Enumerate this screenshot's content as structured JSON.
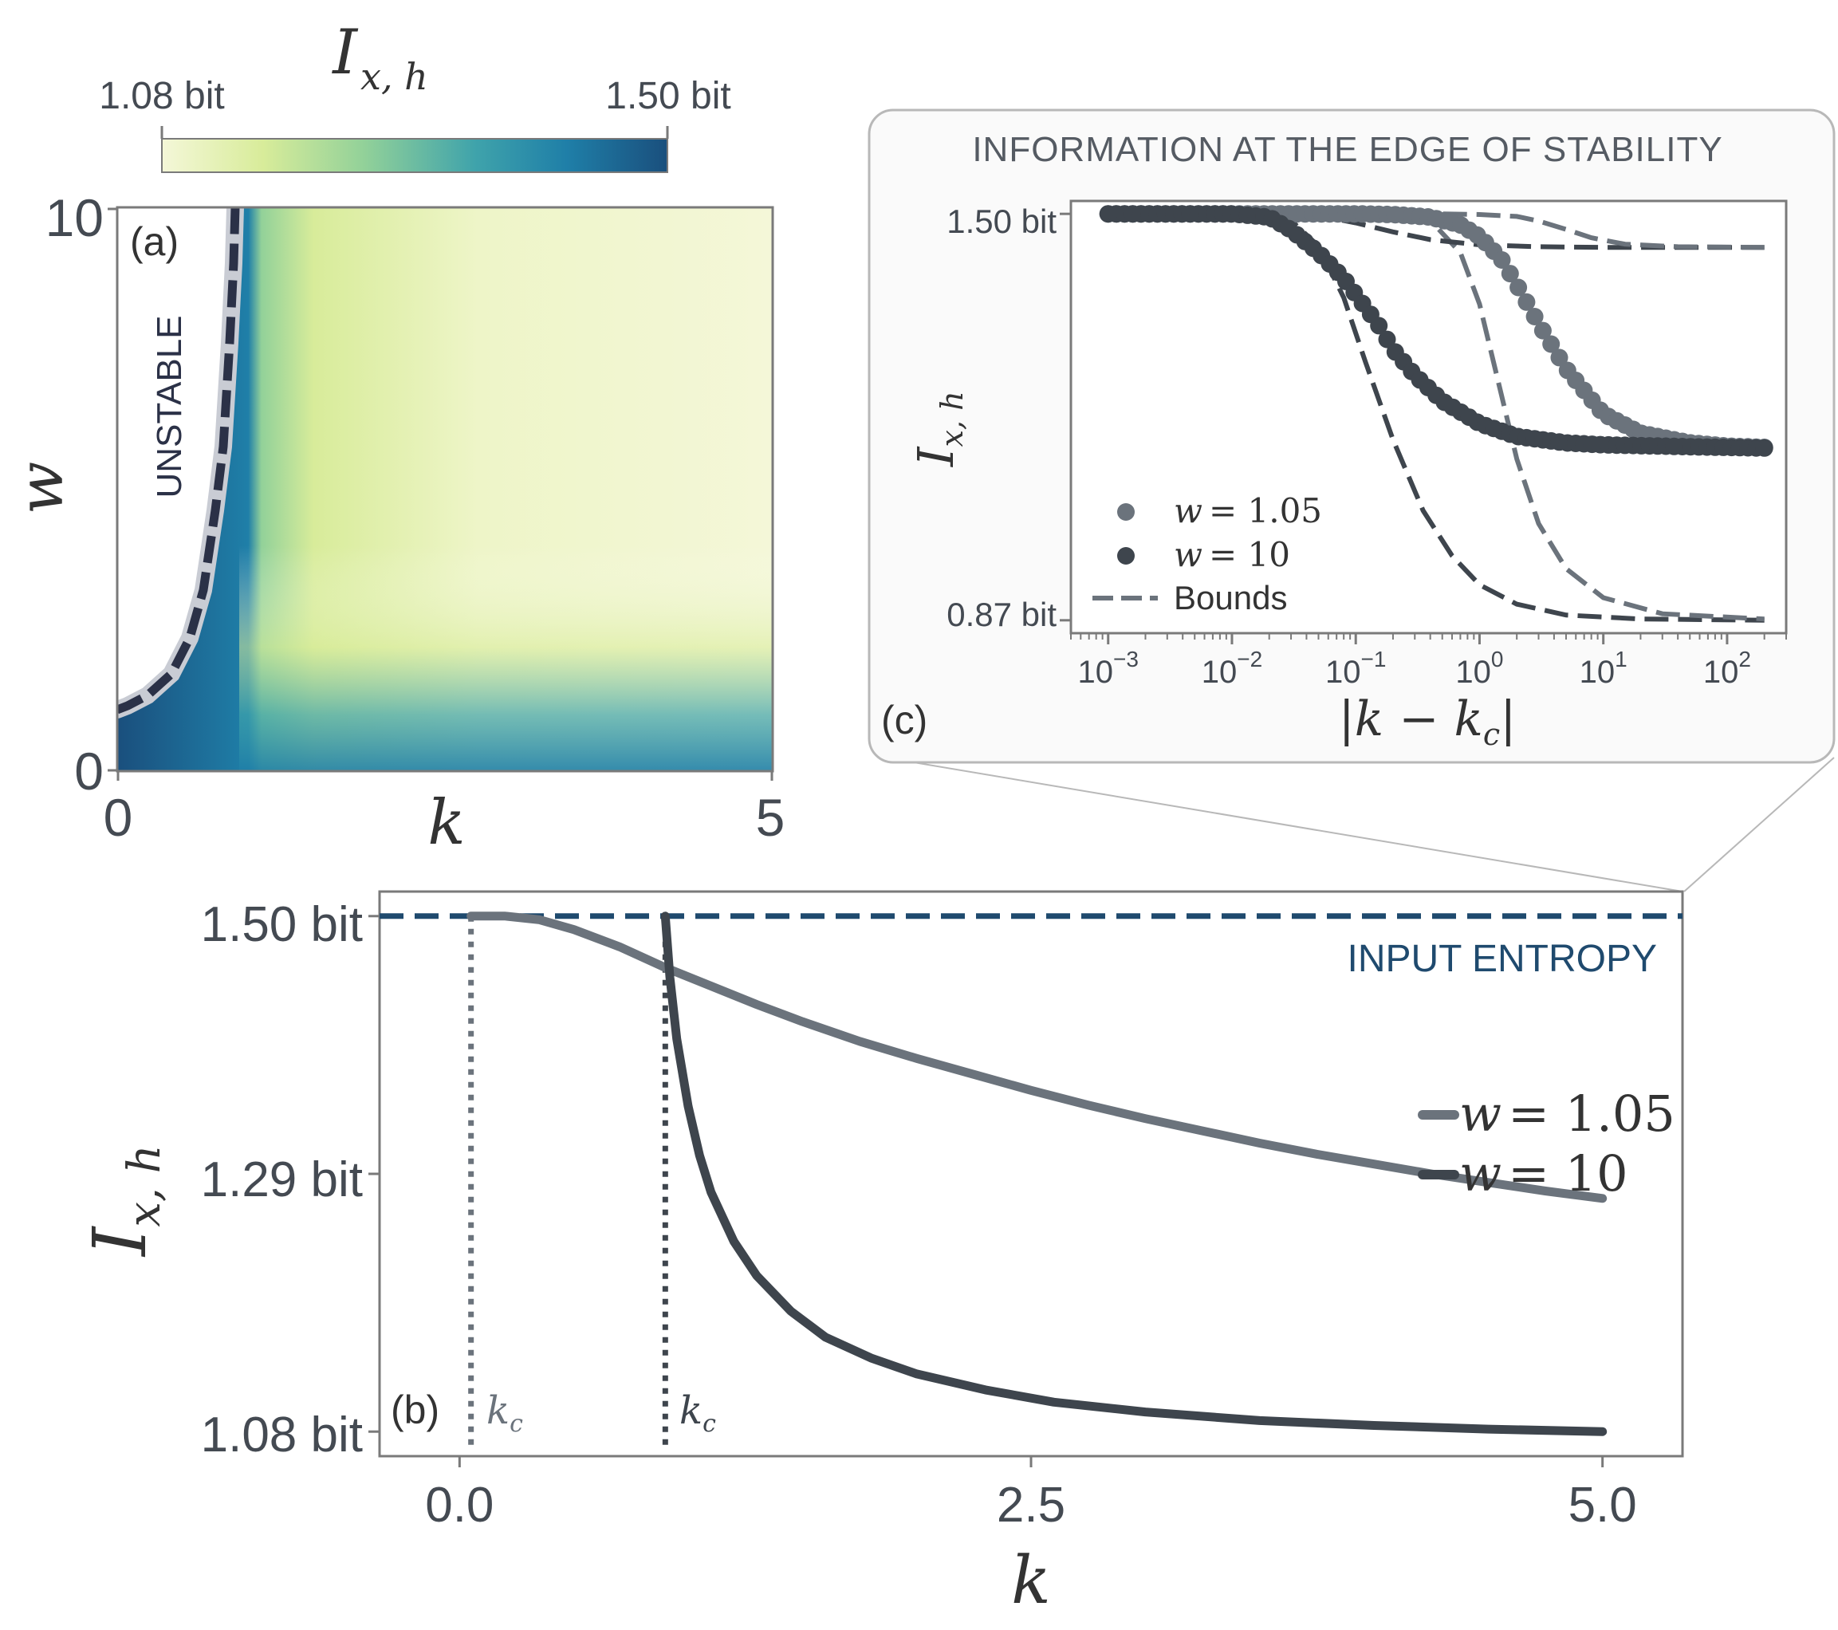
{
  "colors": {
    "axis": "#7a7a7a",
    "text": "#444a52",
    "navy": "#1f4a6e",
    "light_series": "#6b737c",
    "dark_series": "#3e454d",
    "bound_light": "#6b737c",
    "bound_dark": "#3e454d",
    "inset_bg": "#fafafa",
    "inset_border": "#b8b8b8",
    "cmap": [
      "#f4f7d8",
      "#d8ec9a",
      "#92d199",
      "#3fa3ab",
      "#1f7fa8",
      "#1a4f7d"
    ]
  },
  "colorbar": {
    "title_main": "I",
    "title_sub": "x, h",
    "min_label": "1.08 bit",
    "max_label": "1.50 bit"
  },
  "panel_a": {
    "tag": "(a)",
    "region_label": "UNSTABLE",
    "xlabel": "k",
    "ylabel": "w",
    "x_ticks": [
      "0",
      "5"
    ],
    "y_ticks": [
      "0",
      "10"
    ]
  },
  "panel_b": {
    "tag": "(b)",
    "xlabel": "k",
    "ylabel_main": "I",
    "ylabel_sub": "x, h",
    "x_ticks": [
      "0.0",
      "2.5",
      "5.0"
    ],
    "y_ticks": [
      "1.08 bit",
      "1.29 bit",
      "1.50 bit"
    ],
    "ref_line_label": "INPUT ENTROPY",
    "kc_label": "k",
    "kc_sub": "c",
    "legend": [
      {
        "prefix": "w",
        "value": "= 1.05"
      },
      {
        "prefix": "w",
        "value": "= 10"
      }
    ]
  },
  "panel_c": {
    "tag": "(c)",
    "title": "INFORMATION AT THE EDGE OF STABILITY",
    "xlabel": "|k − k",
    "xlabel_sub": "c",
    "xlabel_end": "|",
    "ylabel_main": "I",
    "ylabel_sub": "x, h",
    "y_ticks": [
      "0.87 bit",
      "1.50 bit"
    ],
    "x_tick_exponents": [
      "−3",
      "−2",
      "−1",
      "0",
      "1",
      "2"
    ],
    "x_tick_base": "10",
    "legend": [
      {
        "prefix": "w",
        "value": "= 1.05"
      },
      {
        "prefix": "w",
        "value": "= 10"
      },
      {
        "text": "Bounds"
      }
    ]
  },
  "chart_data": [
    {
      "panel": "a",
      "type": "heatmap",
      "xlabel": "k",
      "ylabel": "w",
      "xlim": [
        0,
        5
      ],
      "ylim": [
        0,
        10
      ],
      "colorbar_range": [
        1.08,
        1.5
      ],
      "colorbar_unit": "bit",
      "stability_boundary": {
        "w": [
          1.05,
          1.5,
          2.0,
          3.0,
          4.0,
          5.0,
          6.0,
          7.0,
          8.0,
          9.0,
          10.0
        ],
        "k": [
          0.0,
          0.3,
          0.55,
          0.75,
          0.84,
          0.88,
          0.91,
          0.93,
          0.945,
          0.955,
          0.965
        ]
      }
    },
    {
      "panel": "b",
      "type": "line",
      "xlabel": "k",
      "ylabel": "I_x,h",
      "xlim": [
        -0.35,
        5.35
      ],
      "ylim": [
        1.06,
        1.52
      ],
      "reference_line": {
        "y": 1.5,
        "label": "INPUT ENTROPY"
      },
      "critical_points": [
        0.05,
        0.9
      ],
      "series": [
        {
          "name": "w = 1.05",
          "x": [
            0.05,
            0.2,
            0.35,
            0.5,
            0.7,
            0.9,
            1.1,
            1.3,
            1.5,
            1.75,
            2.0,
            2.25,
            2.5,
            2.75,
            3.0,
            3.25,
            3.5,
            3.75,
            4.0,
            4.25,
            4.5,
            4.75,
            5.0
          ],
          "y": [
            1.5,
            1.5,
            1.497,
            1.489,
            1.475,
            1.458,
            1.443,
            1.428,
            1.414,
            1.398,
            1.384,
            1.371,
            1.358,
            1.346,
            1.335,
            1.325,
            1.315,
            1.306,
            1.298,
            1.29,
            1.283,
            1.276,
            1.27
          ]
        },
        {
          "name": "w = 10",
          "x": [
            0.9,
            0.92,
            0.95,
            1.0,
            1.05,
            1.1,
            1.2,
            1.3,
            1.45,
            1.6,
            1.8,
            2.0,
            2.3,
            2.6,
            3.0,
            3.5,
            4.0,
            4.5,
            5.0
          ],
          "y": [
            1.5,
            1.45,
            1.4,
            1.345,
            1.305,
            1.275,
            1.235,
            1.207,
            1.178,
            1.157,
            1.14,
            1.127,
            1.114,
            1.104,
            1.096,
            1.089,
            1.085,
            1.082,
            1.08
          ]
        }
      ]
    },
    {
      "panel": "c",
      "type": "scatter",
      "xscale": "log",
      "xlabel": "|k - k_c|",
      "ylabel": "I_x,h",
      "xlim": [
        0.0005,
        300
      ],
      "ylim": [
        0.85,
        1.52
      ],
      "series": [
        {
          "name": "w = 1.05",
          "marker": "circle",
          "x": [
            0.001,
            0.003,
            0.01,
            0.03,
            0.1,
            0.2,
            0.4,
            0.7,
            1.0,
            1.5,
            2.0,
            3.0,
            5.0,
            10,
            20,
            50,
            100,
            200
          ],
          "y": [
            1.5,
            1.5,
            1.5,
            1.5,
            1.5,
            1.499,
            1.495,
            1.483,
            1.465,
            1.43,
            1.39,
            1.33,
            1.26,
            1.19,
            1.16,
            1.145,
            1.14,
            1.138
          ]
        },
        {
          "name": "w = 10",
          "marker": "circle",
          "x": [
            0.001,
            0.003,
            0.01,
            0.02,
            0.03,
            0.05,
            0.08,
            0.1,
            0.15,
            0.2,
            0.3,
            0.5,
            1.0,
            2.0,
            5.0,
            10,
            50,
            100,
            200
          ],
          "y": [
            1.5,
            1.5,
            1.5,
            1.495,
            1.475,
            1.44,
            1.4,
            1.375,
            1.33,
            1.29,
            1.25,
            1.21,
            1.175,
            1.155,
            1.145,
            1.142,
            1.139,
            1.138,
            1.137
          ]
        },
        {
          "name": "Bounds",
          "marker": "dashed",
          "curves": [
            {
              "x": [
                0.001,
                0.01,
                0.03,
                0.05,
                0.08,
                0.12,
                0.2,
                0.35,
                0.6,
                1.0,
                2,
                5,
                20,
                200
              ],
              "y": [
                1.5,
                1.5,
                1.49,
                1.45,
                1.37,
                1.27,
                1.15,
                1.04,
                0.97,
                0.925,
                0.895,
                0.878,
                0.872,
                0.87
              ]
            },
            {
              "x": [
                0.001,
                0.1,
                0.4,
                0.7,
                1.0,
                1.5,
                2.0,
                3.0,
                5.0,
                10,
                30,
                200
              ],
              "y": [
                1.5,
                1.5,
                1.49,
                1.44,
                1.36,
                1.22,
                1.12,
                1.02,
                0.95,
                0.905,
                0.88,
                0.872
              ]
            },
            {
              "x": [
                0.001,
                0.03,
                0.05,
                0.1,
                0.2,
                0.4,
                1.0,
                3.0,
                10,
                200
              ],
              "y": [
                1.5,
                1.5,
                1.497,
                1.486,
                1.472,
                1.46,
                1.452,
                1.449,
                1.448,
                1.448
              ]
            },
            {
              "x": [
                0.001,
                0.5,
                1.0,
                2.0,
                3.0,
                5.0,
                8.0,
                15,
                40,
                200
              ],
              "y": [
                1.5,
                1.5,
                1.499,
                1.496,
                1.489,
                1.476,
                1.463,
                1.453,
                1.449,
                1.448
              ]
            }
          ]
        }
      ]
    }
  ]
}
